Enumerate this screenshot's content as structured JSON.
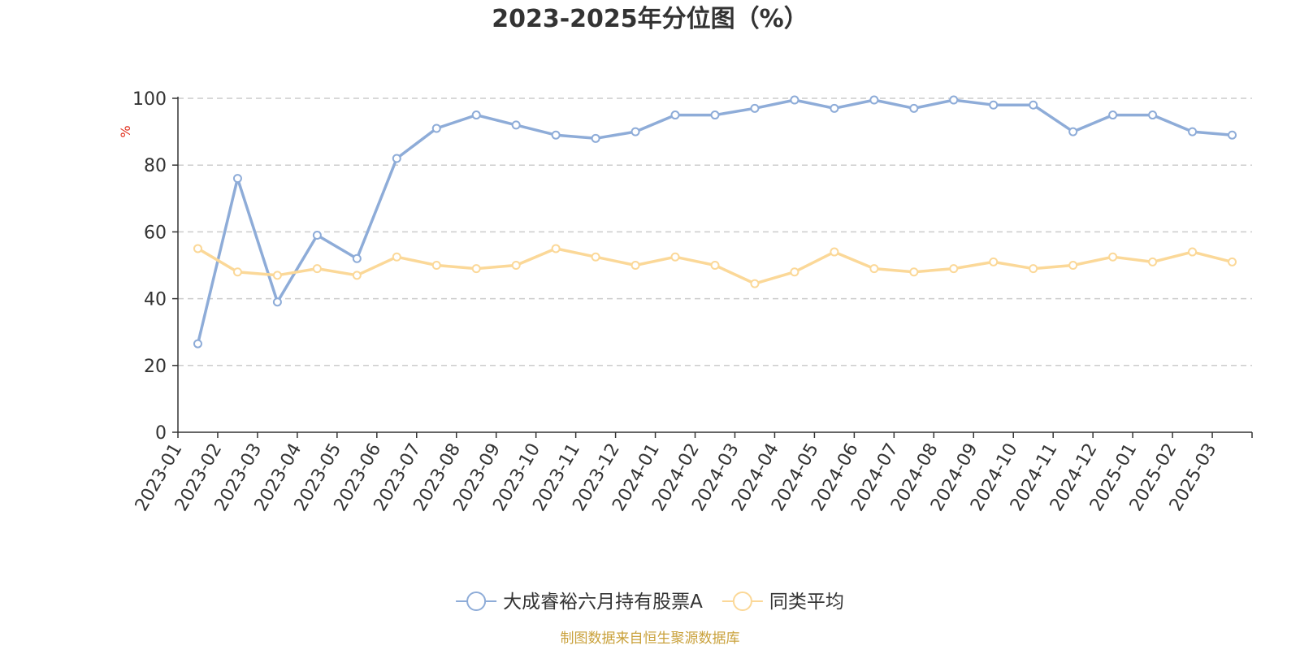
{
  "chart_data": {
    "type": "line",
    "title": "2023-2025年分位图（%）",
    "ylabel": "%",
    "ylim": [
      0,
      100
    ],
    "yticks": [
      0,
      20,
      40,
      60,
      80,
      100
    ],
    "grid": "horizontal-dashed",
    "legend_position": "bottom-center",
    "categories": [
      "2023-01",
      "2023-02",
      "2023-03",
      "2023-04",
      "2023-05",
      "2023-06",
      "2023-07",
      "2023-08",
      "2023-09",
      "2023-10",
      "2023-11",
      "2023-12",
      "2024-01",
      "2024-02",
      "2024-03",
      "2024-04",
      "2024-05",
      "2024-06",
      "2024-07",
      "2024-08",
      "2024-09",
      "2024-10",
      "2024-11",
      "2024-12",
      "2025-01",
      "2025-02",
      "2025-03"
    ],
    "series": [
      {
        "name": "大成睿裕六月持有股票A",
        "color": "#8eacd8",
        "values": [
          26.5,
          76,
          39,
          59,
          52,
          82,
          91,
          95,
          92,
          89,
          88,
          90,
          95,
          95,
          97,
          99.5,
          97,
          99.5,
          97,
          99.5,
          98,
          98,
          90,
          95,
          95,
          90,
          89
        ]
      },
      {
        "name": "同类平均",
        "color": "#fbd898",
        "values": [
          55,
          48,
          47,
          49,
          47,
          52.5,
          50,
          49,
          50,
          55,
          52.5,
          50,
          52.5,
          50,
          44.5,
          48,
          54,
          49,
          48,
          49,
          51,
          49,
          50,
          52.5,
          51,
          54,
          51
        ]
      }
    ]
  },
  "source_text": "制图数据来自恒生聚源数据库",
  "colors": {
    "axis": "#333333",
    "grid": "#cccccc",
    "ylabel": "#e0301e",
    "source": "#c9a13b"
  }
}
